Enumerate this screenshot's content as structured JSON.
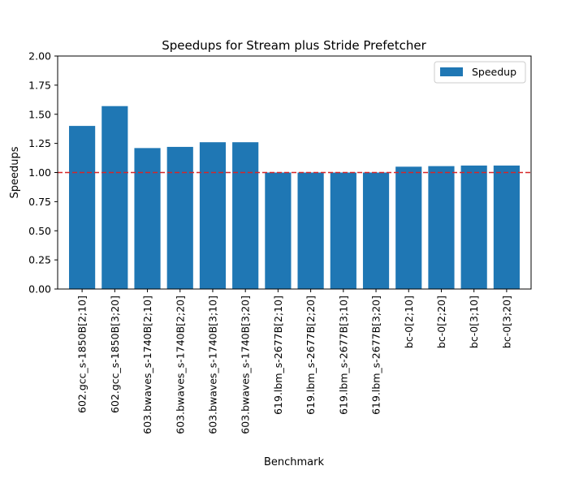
{
  "chart_data": {
    "type": "bar",
    "title": "Speedups for Stream plus Stride Prefetcher",
    "xlabel": "Benchmark",
    "ylabel": "Speedups",
    "ylim": [
      0,
      2.0
    ],
    "yticks": [
      "0.00",
      "0.25",
      "0.50",
      "0.75",
      "1.00",
      "1.25",
      "1.50",
      "1.75",
      "2.00"
    ],
    "categories": [
      "602.gcc_s-1850B[2;10]",
      "602.gcc_s-1850B[3;20]",
      "603.bwaves_s-1740B[2;10]",
      "603.bwaves_s-1740B[2;20]",
      "603.bwaves_s-1740B[3;10]",
      "603.bwaves_s-1740B[3;20]",
      "619.lbm_s-2677B[2;10]",
      "619.lbm_s-2677B[2;20]",
      "619.lbm_s-2677B[3;10]",
      "619.lbm_s-2677B[3;20]",
      "bc-0[2;10]",
      "bc-0[2;20]",
      "bc-0[3;10]",
      "bc-0[3;20]"
    ],
    "series": [
      {
        "name": "Speedup",
        "color": "#1f77b4",
        "values": [
          1.4,
          1.57,
          1.21,
          1.22,
          1.26,
          1.26,
          1.0,
          1.0,
          1.0,
          1.0,
          1.05,
          1.055,
          1.06,
          1.06
        ]
      }
    ],
    "reference_line": {
      "y": 1.0,
      "color": "#d62728",
      "style": "dashed"
    },
    "legend": {
      "placement": "top-right"
    },
    "grid": false
  }
}
